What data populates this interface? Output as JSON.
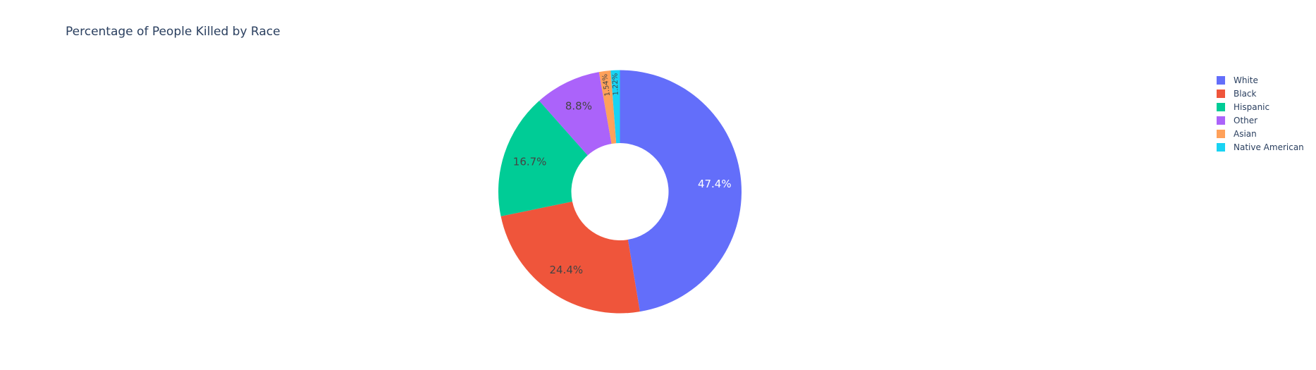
{
  "chart_data": {
    "type": "pie",
    "hole": 0.4,
    "title": "Percentage of People Killed by Race",
    "labels": [
      "White",
      "Black",
      "Hispanic",
      "Other",
      "Asian",
      "Native American"
    ],
    "values": [
      47.4,
      24.4,
      16.7,
      8.8,
      1.54,
      1.22
    ],
    "text_labels": [
      "47.4%",
      "24.4%",
      "16.7%",
      "8.8%",
      "1.54%",
      "1.22%"
    ],
    "colors": [
      "#636efa",
      "#EF553B",
      "#00cc96",
      "#ab63fa",
      "#FFA15A",
      "#19d3f3"
    ],
    "label_text_colors": [
      "#ffffff",
      "#444444",
      "#444444",
      "#444444",
      "#444444",
      "#444444"
    ],
    "direction": "clockwise",
    "rotation": "start at top",
    "legend_position": "right"
  }
}
